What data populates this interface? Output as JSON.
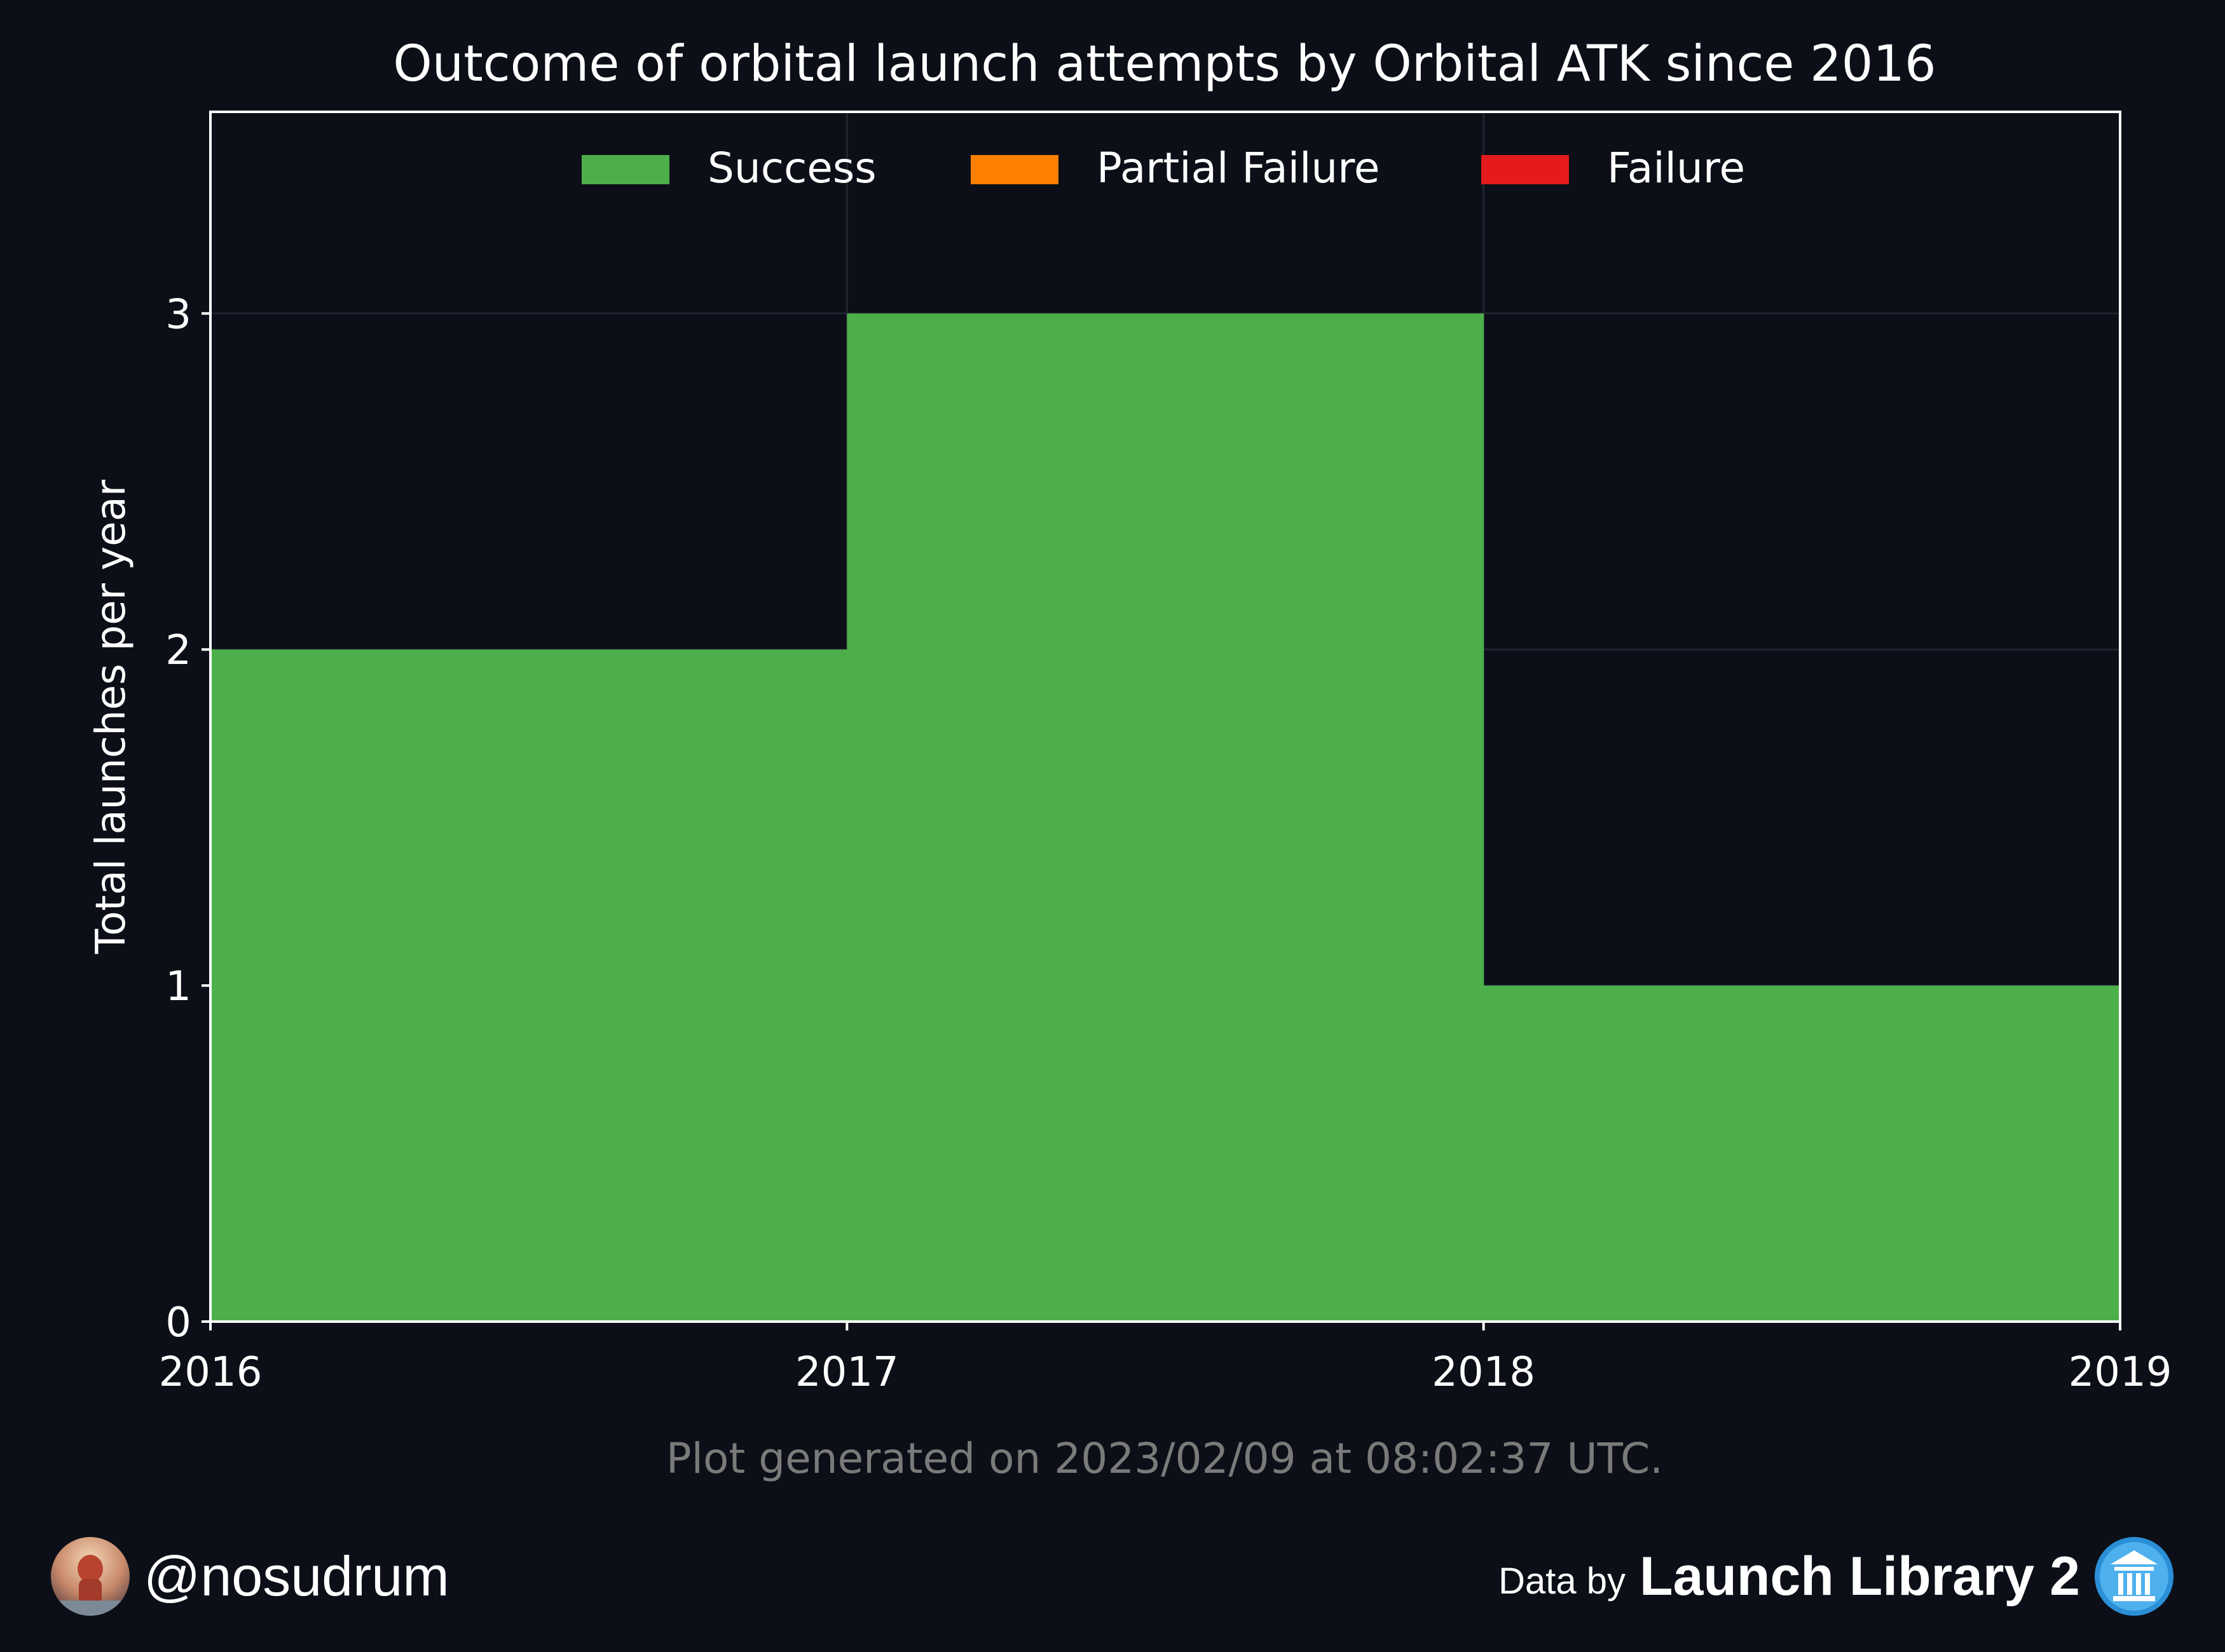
{
  "chart_data": {
    "type": "bar",
    "style": "stacked-step",
    "title": "Outcome of orbital launch attempts by Orbital ATK since 2016",
    "ylabel": "Total launches per year",
    "xlabel": "",
    "x_ticks": [
      "2016",
      "2017",
      "2018",
      "2019"
    ],
    "y_ticks": [
      "0",
      "1",
      "2",
      "3"
    ],
    "ylim": [
      0,
      3.6
    ],
    "xlim": [
      2016,
      2019
    ],
    "bins": [
      {
        "start": 2016,
        "end": 2017
      },
      {
        "start": 2017,
        "end": 2018
      },
      {
        "start": 2018,
        "end": 2019
      }
    ],
    "series": [
      {
        "name": "Success",
        "color": "#4daf4a",
        "values": [
          2,
          3,
          1
        ]
      },
      {
        "name": "Partial Failure",
        "color": "#ff7f00",
        "values": [
          0,
          0,
          0
        ]
      },
      {
        "name": "Failure",
        "color": "#e41a1c",
        "values": [
          0,
          0,
          0
        ]
      }
    ],
    "legend_position": "top-center",
    "grid": true,
    "background": "#0c0f17"
  },
  "annotation": "Plot generated on 2023/02/09 at 08:02:37 UTC.",
  "footer": {
    "handle": "@nosudrum",
    "credit_prefix": "Data by",
    "credit_name": "Launch Library 2"
  }
}
